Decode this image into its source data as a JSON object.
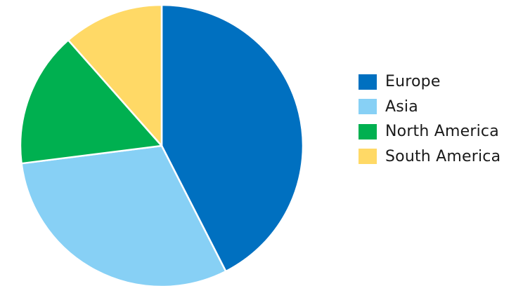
{
  "chart_data": {
    "type": "pie",
    "title": "",
    "categories": [
      "Europe",
      "Asia",
      "North America",
      "South America"
    ],
    "values": [
      42.5,
      30.5,
      15.5,
      11.5
    ],
    "colors": [
      "#0070C0",
      "#87D0F5",
      "#00B050",
      "#FFD966"
    ],
    "legend": {
      "position": "right",
      "items": [
        {
          "label": "Europe",
          "color": "#0070C0"
        },
        {
          "label": "Asia",
          "color": "#87D0F5"
        },
        {
          "label": "North America",
          "color": "#00B050"
        },
        {
          "label": "South America",
          "color": "#FFD966"
        }
      ]
    }
  }
}
